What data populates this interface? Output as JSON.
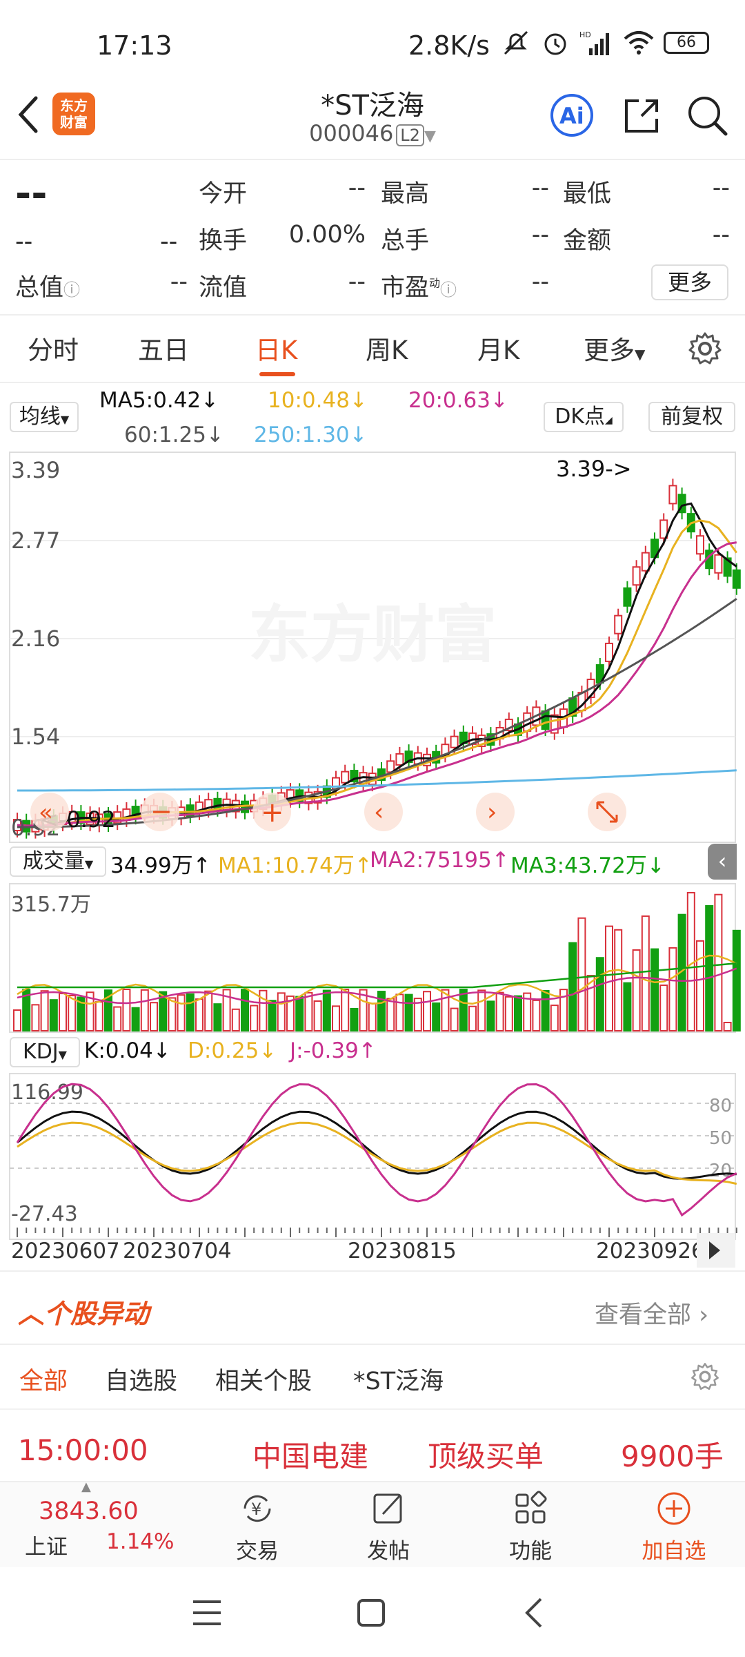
{
  "status_bar": {
    "time": "17:13",
    "network_speed": "2.8K/s",
    "battery": "66"
  },
  "header": {
    "logo_text": "东方\n财富",
    "title": "*ST泛海",
    "code": "000046",
    "level": "L2"
  },
  "quote": {
    "price": "--",
    "change": "--",
    "change_pct": "--",
    "items": [
      {
        "label": "今开",
        "value": "--"
      },
      {
        "label": "最高",
        "value": "--"
      },
      {
        "label": "最低",
        "value": "--"
      },
      {
        "label": "换手",
        "value": "0.00%"
      },
      {
        "label": "总手",
        "value": "--"
      },
      {
        "label": "金额",
        "value": "--"
      },
      {
        "label": "总值",
        "value": "--"
      },
      {
        "label": "流值",
        "value": "--"
      },
      {
        "label": "市盈",
        "value": "--"
      }
    ],
    "pe_sup": "动",
    "more_label": "更多"
  },
  "tabs": [
    "分时",
    "五日",
    "日K",
    "周K",
    "月K",
    "更多"
  ],
  "active_tab": "日K",
  "ma": {
    "selector": "均线",
    "ma5": "MA5:0.42↓",
    "ma10": "10:0.48↓",
    "ma20": "20:0.63↓",
    "ma60": "60:1.25↓",
    "ma250": "250:1.30↓",
    "dk_label": "DK点",
    "adjust_label": "前复权"
  },
  "price_axis": [
    "3.39",
    "2.77",
    "2.16",
    "1.54",
    "0.92"
  ],
  "annotations": {
    "high": "3.39->",
    "low": "<-0.92"
  },
  "watermark": "东方财富",
  "volume": {
    "selector": "成交量",
    "value": "34.99万↑",
    "ma1": "MA1:10.74万↑",
    "ma2": "MA2:75195↑",
    "ma3": "MA3:43.72万↓",
    "max_label": "315.7万"
  },
  "kdj": {
    "selector": "KDJ",
    "k": "K:0.04↓",
    "d": "D:0.25↓",
    "j": "J:-0.39↑",
    "max_label": "116.99",
    "min_label": "-27.43",
    "levels": [
      "80",
      "50",
      "20"
    ]
  },
  "dates": [
    "20230607",
    "20230704",
    "20230815",
    "20230926"
  ],
  "movement": {
    "title": "个股异动",
    "view_all": "查看全部",
    "filters": [
      "全部",
      "自选股",
      "相关个股",
      "*ST泛海"
    ],
    "row": {
      "time": "15:00:00",
      "stock": "中国电建",
      "type": "顶级买单",
      "volume": "9900手"
    }
  },
  "bottom_nav": {
    "index_value": "3843.60",
    "index_name": "上证",
    "index_change": "1.14%",
    "items": [
      "交易",
      "发帖",
      "功能",
      "加自选"
    ]
  },
  "colors": {
    "accent": "#e8501e",
    "up": "#d9303a",
    "down": "#12a012",
    "ma5": "#111111",
    "ma10": "#e8b220",
    "ma20": "#c8308e",
    "ma60": "#555555",
    "ma250": "#5fb7e6"
  }
}
